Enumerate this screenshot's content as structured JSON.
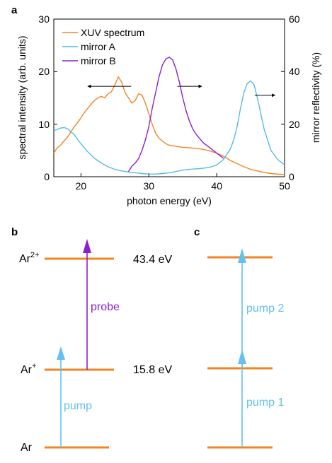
{
  "colors": {
    "xuv": "#f28522",
    "mirrorA": "#56b9e8",
    "mirrorB": "#8a1fd6",
    "level": "#f28522",
    "pump": "#62c1f1",
    "probe": "#8a1fd6"
  },
  "panel_labels": {
    "a": "a",
    "b": "b",
    "c": "c"
  },
  "chart_data": {
    "type": "line",
    "xlabel": "photon energy (eV)",
    "ylabel_left": "spectral intensity (arb. units)",
    "ylabel_right": "mirror reflectivity (%)",
    "xlim": [
      16,
      50
    ],
    "ylim_left": [
      0,
      30
    ],
    "ylim_right": [
      0,
      60
    ],
    "xticks": [
      "20",
      "30",
      "40",
      "50"
    ],
    "yticks_left": [
      "0",
      "10",
      "20",
      "30"
    ],
    "yticks_right": [
      "0",
      "20",
      "40",
      "60"
    ],
    "grid": false,
    "legend_position": "top-left",
    "series": [
      {
        "name": "XUV spectrum",
        "axis": "left",
        "color_key": "xuv",
        "x": [
          16,
          16.5,
          17,
          17.5,
          18,
          18.5,
          19,
          19.5,
          20,
          20.5,
          21,
          21.5,
          22,
          22.5,
          23,
          23.5,
          24,
          24.5,
          25,
          25.5,
          26,
          26.5,
          27,
          27.5,
          28,
          28.5,
          29,
          29.5,
          30,
          30.5,
          31,
          31.5,
          32,
          32.5,
          33,
          34,
          35,
          36,
          37,
          38,
          39,
          40,
          41,
          42,
          43,
          44,
          45,
          46,
          47,
          48,
          49,
          50
        ],
        "y": [
          4.5,
          5.5,
          6.0,
          6.8,
          7.5,
          8.5,
          9.5,
          10.3,
          11.2,
          12.2,
          13.0,
          13.8,
          14.5,
          15.0,
          15.3,
          15.0,
          15.8,
          16.2,
          17.5,
          19.0,
          18.0,
          16.0,
          15.0,
          14.0,
          14.5,
          15.8,
          15.5,
          14.0,
          12.0,
          10.0,
          8.3,
          7.3,
          6.8,
          6.3,
          6.0,
          5.8,
          5.6,
          5.5,
          5.4,
          5.2,
          4.9,
          4.5,
          3.9,
          3.1,
          2.5,
          1.9,
          1.4,
          1.1,
          0.8,
          0.6,
          0.5,
          0.4
        ]
      },
      {
        "name": "mirror A",
        "axis": "right",
        "color_key": "mirrorA",
        "x": [
          16,
          17,
          17.5,
          18,
          19,
          20,
          21,
          22,
          23,
          24,
          25,
          26,
          27,
          28,
          29,
          30,
          31,
          32,
          33,
          34,
          35,
          36,
          37,
          38,
          39,
          40,
          41,
          42,
          42.5,
          43,
          43.5,
          44,
          44.5,
          45,
          45.5,
          46,
          46.5,
          47,
          48,
          49,
          50
        ],
        "y": [
          17.5,
          18.5,
          18.7,
          18.3,
          16.0,
          12.5,
          9.5,
          7.0,
          5.2,
          3.8,
          2.8,
          2.2,
          1.8,
          1.5,
          1.2,
          1.0,
          1.0,
          1.2,
          1.5,
          2.0,
          2.5,
          2.8,
          3.0,
          3.2,
          3.6,
          4.5,
          6.5,
          10.5,
          14.0,
          19.0,
          26.0,
          32.0,
          35.5,
          36.5,
          35.0,
          30.0,
          24.0,
          18.0,
          10.0,
          6.5,
          4.5
        ]
      },
      {
        "name": "mirror B",
        "axis": "right",
        "color_key": "mirrorB",
        "x": [
          27,
          27.5,
          28,
          28.5,
          29,
          29.5,
          30,
          30.5,
          31,
          31.5,
          32,
          32.5,
          33,
          33.5,
          34,
          34.5,
          35,
          35.5,
          36,
          36.5,
          37,
          37.5,
          38,
          38.5,
          39,
          39.5,
          40,
          40.5,
          41
        ],
        "y": [
          2.0,
          4.0,
          5.2,
          7.0,
          10.0,
          14.0,
          19.0,
          26.0,
          32.0,
          38.0,
          42.5,
          44.8,
          45.5,
          44.5,
          41.0,
          36.0,
          30.0,
          25.0,
          21.0,
          18.0,
          16.0,
          14.5,
          13.0,
          12.0,
          11.0,
          10.0,
          9.0,
          8.0,
          7.0
        ]
      }
    ],
    "arrows": [
      {
        "direction": "left",
        "axis": "left",
        "x_from": 27.4,
        "x_to": 21.0,
        "y": 17.2
      },
      {
        "direction": "right",
        "axis": "right",
        "x_from": 34.2,
        "x_to": 37.8,
        "y": 34.4
      },
      {
        "direction": "right",
        "axis": "right",
        "x_from": 45.6,
        "x_to": 48.6,
        "y": 31.0
      }
    ]
  },
  "diagram_b": {
    "levels": [
      "Ar",
      "Ar+",
      "Ar2+"
    ],
    "level_labels": {
      "ar": "Ar",
      "ar_plus_base": "Ar",
      "ar_plus_sup": "+",
      "ar2_base": "Ar",
      "ar2_sup": "2+"
    },
    "energies": {
      "upper": "43.4 eV",
      "middle": "15.8 eV"
    },
    "transitions": {
      "pump": "pump",
      "probe": "probe"
    }
  },
  "diagram_c": {
    "transitions": {
      "pump1": "pump 1",
      "pump2": "pump 2"
    }
  }
}
